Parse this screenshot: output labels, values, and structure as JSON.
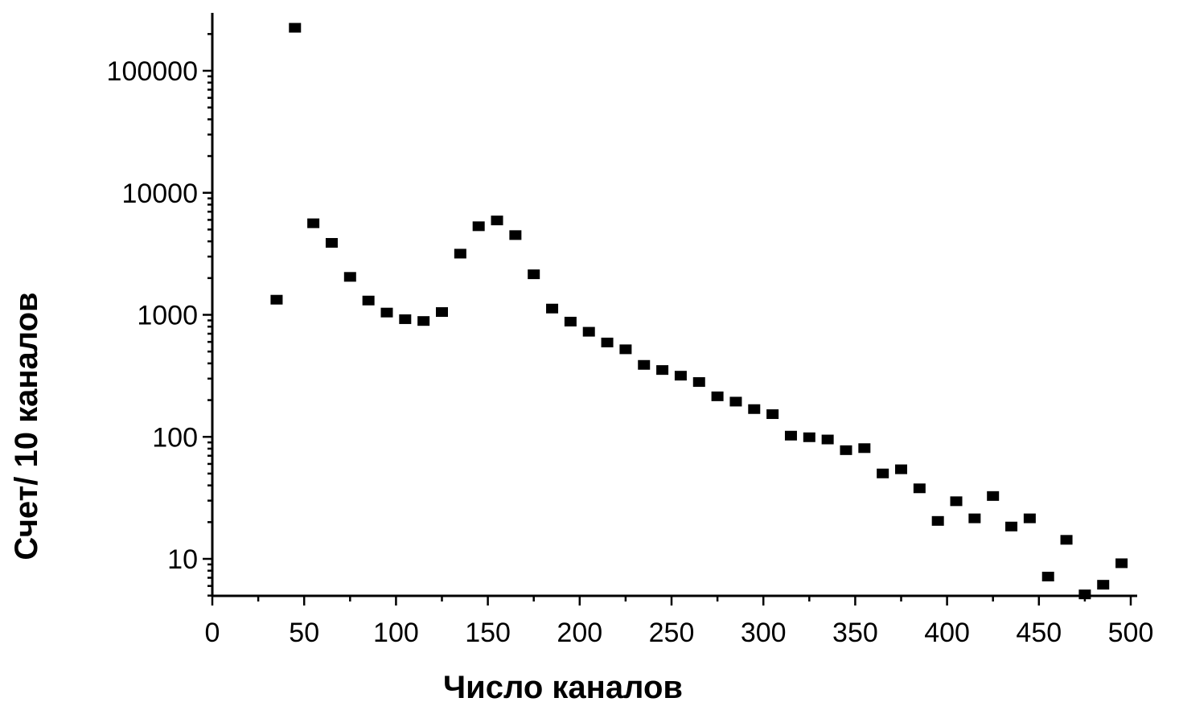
{
  "chart_data": {
    "type": "scatter",
    "title": "",
    "xlabel": "Число каналов",
    "ylabel": "Счет/ 10 каналов",
    "xlim": [
      0,
      500
    ],
    "ylim": [
      5,
      300000
    ],
    "y_scale": "log",
    "grid": false,
    "legend": "none",
    "marker": "square",
    "marker_color": "#000000",
    "x_ticks": [
      0,
      50,
      100,
      150,
      200,
      250,
      300,
      350,
      400,
      450,
      500
    ],
    "x_tick_labels": [
      "0",
      "50",
      "100",
      "150",
      "200",
      "250",
      "300",
      "350",
      "400",
      "450",
      "500"
    ],
    "y_ticks": [
      10,
      100,
      1000,
      10000,
      100000
    ],
    "y_tick_labels": [
      "10",
      "100",
      "1000",
      "10000",
      "100000"
    ],
    "series": [
      {
        "points": [
          [
            35,
            1300
          ],
          [
            45,
            220000
          ],
          [
            55,
            5500
          ],
          [
            65,
            3800
          ],
          [
            75,
            2000
          ],
          [
            85,
            1280
          ],
          [
            95,
            1020
          ],
          [
            105,
            900
          ],
          [
            115,
            870
          ],
          [
            125,
            1030
          ],
          [
            135,
            3100
          ],
          [
            145,
            5200
          ],
          [
            155,
            5800
          ],
          [
            165,
            4400
          ],
          [
            175,
            2100
          ],
          [
            185,
            1100
          ],
          [
            195,
            860
          ],
          [
            205,
            710
          ],
          [
            215,
            580
          ],
          [
            225,
            510
          ],
          [
            235,
            380
          ],
          [
            245,
            345
          ],
          [
            255,
            310
          ],
          [
            265,
            275
          ],
          [
            275,
            210
          ],
          [
            285,
            190
          ],
          [
            295,
            165
          ],
          [
            305,
            150
          ],
          [
            315,
            100
          ],
          [
            325,
            97
          ],
          [
            335,
            93
          ],
          [
            345,
            76
          ],
          [
            355,
            79
          ],
          [
            365,
            49
          ],
          [
            375,
            53
          ],
          [
            385,
            37
          ],
          [
            395,
            20
          ],
          [
            405,
            29
          ],
          [
            415,
            21
          ],
          [
            425,
            32
          ],
          [
            435,
            18
          ],
          [
            445,
            21
          ],
          [
            455,
            7
          ],
          [
            465,
            14
          ],
          [
            475,
            5
          ],
          [
            485,
            6
          ],
          [
            495,
            9
          ]
        ]
      }
    ]
  }
}
